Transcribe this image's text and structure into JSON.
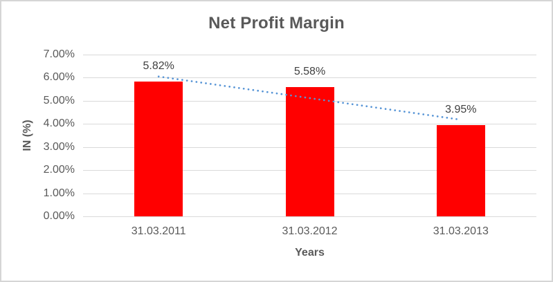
{
  "chart_data": {
    "type": "bar",
    "title": "Net Profit Margin",
    "xlabel": "Years",
    "ylabel": "IN (%)",
    "categories": [
      "31.03.2011",
      "31.03.2012",
      "31.03.2013"
    ],
    "values": [
      5.82,
      5.58,
      3.95
    ],
    "data_labels": [
      "5.82%",
      "5.58%",
      "3.95%"
    ],
    "ylim": [
      0,
      7
    ],
    "ytick_step": 1,
    "ytick_labels": [
      "0.00%",
      "1.00%",
      "2.00%",
      "3.00%",
      "4.00%",
      "5.00%",
      "6.00%",
      "7.00%"
    ],
    "grid": true,
    "legend": false,
    "bar_color": "#ff0000",
    "trendline": {
      "type": "linear",
      "style": "dotted",
      "color": "#5694d6"
    }
  }
}
